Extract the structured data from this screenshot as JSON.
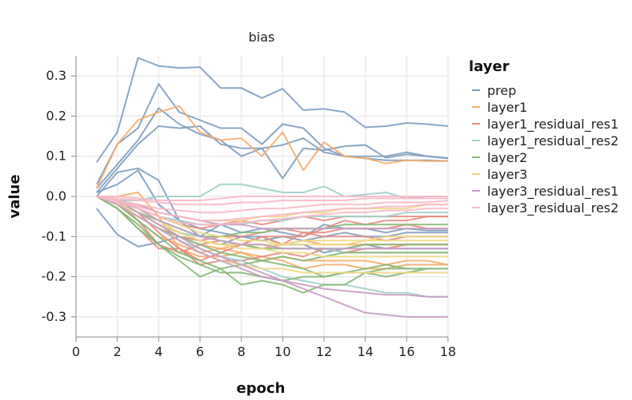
{
  "chart_data": {
    "type": "line",
    "title": "bias",
    "xlabel": "epoch",
    "ylabel": "value",
    "xlim": [
      0,
      18
    ],
    "ylim": [
      -0.35,
      0.35
    ],
    "xticks": [
      "0",
      "2",
      "4",
      "6",
      "8",
      "10",
      "12",
      "14",
      "16",
      "18"
    ],
    "yticks": [
      "0.3",
      "0.2",
      "0.1",
      "0.0",
      "-0.1",
      "-0.2",
      "-0.3"
    ],
    "grid": true,
    "legend_position": "right",
    "legend": {
      "title": "layer",
      "entries": [
        {
          "name": "prep",
          "color": "#7e9dbf"
        },
        {
          "name": "layer1",
          "color": "#f5ad6c"
        },
        {
          "name": "layer1_residual_res1",
          "color": "#e88b80"
        },
        {
          "name": "layer1_residual_res2",
          "color": "#9fcfc9"
        },
        {
          "name": "layer2",
          "color": "#86b875"
        },
        {
          "name": "layer3",
          "color": "#f0d884"
        },
        {
          "name": "layer3_residual_res1",
          "color": "#c69cc3"
        },
        {
          "name": "layer3_residual_res2",
          "color": "#f9b8c6"
        }
      ]
    },
    "x": [
      1,
      2,
      3,
      4,
      5,
      6,
      7,
      8,
      9,
      10,
      11,
      12,
      13,
      14,
      15,
      16,
      17,
      18
    ],
    "series": [
      {
        "name": "prep",
        "values": [
          0.085,
          0.16,
          0.345,
          0.325,
          0.32,
          0.322,
          0.27,
          0.27,
          0.245,
          0.268,
          0.215,
          0.218,
          0.21,
          0.172,
          0.175,
          0.183,
          0.18,
          0.175
        ]
      },
      {
        "name": "prep",
        "values": [
          0.03,
          0.13,
          0.17,
          0.28,
          0.21,
          0.19,
          0.17,
          0.17,
          0.13,
          0.18,
          0.17,
          0.12,
          0.1,
          0.1,
          0.1,
          0.11,
          0.1,
          0.095
        ]
      },
      {
        "name": "prep",
        "values": [
          0.02,
          0.08,
          0.14,
          0.22,
          0.18,
          0.155,
          0.14,
          0.1,
          0.12,
          0.045,
          0.12,
          0.115,
          0.125,
          0.128,
          0.096,
          0.105,
          0.1,
          0.095
        ]
      },
      {
        "name": "prep",
        "values": [
          0.01,
          0.07,
          0.13,
          0.175,
          0.17,
          0.175,
          0.13,
          0.12,
          0.12,
          0.128,
          0.145,
          0.11,
          0.1,
          0.095,
          0.09,
          0.09,
          0.09,
          0.088
        ]
      },
      {
        "name": "prep",
        "values": [
          0.0,
          0.06,
          0.07,
          0.04,
          -0.06,
          -0.1,
          -0.07,
          -0.09,
          -0.08,
          -0.09,
          -0.1,
          -0.07,
          -0.08,
          -0.08,
          -0.09,
          -0.08,
          -0.085,
          -0.085
        ]
      },
      {
        "name": "prep",
        "values": [
          -0.03,
          -0.095,
          -0.125,
          -0.115,
          -0.1,
          -0.11,
          -0.12,
          -0.1,
          -0.11,
          -0.1,
          -0.11,
          -0.1,
          -0.09,
          -0.1,
          -0.1,
          -0.09,
          -0.09,
          -0.09
        ]
      },
      {
        "name": "prep",
        "values": [
          0.01,
          0.03,
          0.065,
          -0.02,
          -0.06,
          -0.08,
          -0.09,
          -0.1,
          -0.1,
          -0.12,
          -0.12,
          -0.14,
          -0.13,
          -0.12,
          -0.13,
          -0.13,
          -0.13,
          -0.13
        ]
      },
      {
        "name": "layer1",
        "values": [
          0.02,
          0.13,
          0.19,
          0.21,
          0.225,
          0.16,
          0.14,
          0.145,
          0.1,
          0.16,
          0.065,
          0.135,
          0.1,
          0.095,
          0.082,
          0.09,
          0.088,
          0.088
        ]
      },
      {
        "name": "layer1",
        "values": [
          0.0,
          0.0,
          0.01,
          -0.05,
          -0.13,
          -0.15,
          -0.15,
          -0.14,
          -0.16,
          -0.15,
          -0.16,
          -0.16,
          -0.16,
          -0.16,
          -0.17,
          -0.16,
          -0.16,
          -0.17
        ]
      },
      {
        "name": "layer1",
        "values": [
          0.0,
          -0.01,
          -0.06,
          -0.1,
          -0.12,
          -0.14,
          -0.13,
          -0.12,
          -0.13,
          -0.12,
          -0.11,
          -0.12,
          -0.12,
          -0.12,
          -0.12,
          -0.12,
          -0.12,
          -0.12
        ]
      },
      {
        "name": "layer1",
        "values": [
          0.0,
          -0.02,
          -0.05,
          -0.08,
          -0.1,
          -0.12,
          -0.13,
          -0.14,
          -0.15,
          -0.16,
          -0.18,
          -0.17,
          -0.17,
          -0.18,
          -0.18,
          -0.17,
          -0.17,
          -0.17
        ]
      },
      {
        "name": "layer1_residual_res1",
        "values": [
          0.0,
          -0.02,
          -0.04,
          -0.07,
          -0.1,
          -0.11,
          -0.1,
          -0.1,
          -0.09,
          -0.08,
          -0.09,
          -0.09,
          -0.08,
          -0.08,
          -0.08,
          -0.07,
          -0.08,
          -0.08
        ]
      },
      {
        "name": "layer1_residual_res1",
        "values": [
          0.0,
          -0.01,
          -0.04,
          -0.09,
          -0.13,
          -0.16,
          -0.14,
          -0.12,
          -0.1,
          -0.12,
          -0.09,
          -0.1,
          -0.1,
          -0.1,
          -0.11,
          -0.1,
          -0.1,
          -0.1
        ]
      },
      {
        "name": "layer1_residual_res1",
        "values": [
          0.0,
          -0.02,
          -0.06,
          -0.12,
          -0.14,
          -0.12,
          -0.11,
          -0.12,
          -0.1,
          -0.1,
          -0.1,
          -0.08,
          -0.06,
          -0.07,
          -0.06,
          -0.06,
          -0.05,
          -0.05
        ]
      },
      {
        "name": "layer1_residual_res1",
        "values": [
          0.0,
          -0.01,
          -0.03,
          -0.05,
          -0.07,
          -0.08,
          -0.07,
          -0.06,
          -0.07,
          -0.06,
          -0.05,
          -0.06,
          -0.05,
          -0.05,
          -0.05,
          -0.05,
          -0.05,
          -0.05
        ]
      },
      {
        "name": "layer1_residual_res1",
        "values": [
          0.0,
          -0.03,
          -0.08,
          -0.13,
          -0.13,
          -0.17,
          -0.16,
          -0.16,
          -0.15,
          -0.14,
          -0.15,
          -0.13,
          -0.14,
          -0.13,
          -0.13,
          -0.12,
          -0.12,
          -0.12
        ]
      },
      {
        "name": "layer1_residual_res2",
        "values": [
          0.0,
          -0.01,
          -0.01,
          0.0,
          0.0,
          0.0,
          0.03,
          0.03,
          0.02,
          0.01,
          0.01,
          0.025,
          0.0,
          0.005,
          0.01,
          -0.005,
          0.0,
          0.0
        ]
      },
      {
        "name": "layer1_residual_res2",
        "values": [
          0.0,
          -0.02,
          -0.05,
          -0.08,
          -0.11,
          -0.13,
          -0.15,
          -0.16,
          -0.18,
          -0.2,
          -0.21,
          -0.22,
          -0.22,
          -0.23,
          -0.24,
          -0.24,
          -0.25,
          -0.25
        ]
      },
      {
        "name": "layer1_residual_res2",
        "values": [
          0.0,
          -0.01,
          -0.03,
          -0.05,
          -0.06,
          -0.07,
          -0.07,
          -0.07,
          -0.06,
          -0.06,
          -0.05,
          -0.05,
          -0.05,
          -0.05,
          -0.05,
          -0.04,
          -0.04,
          -0.04
        ]
      },
      {
        "name": "layer1_residual_res2",
        "values": [
          0.0,
          -0.02,
          -0.04,
          -0.07,
          -0.09,
          -0.1,
          -0.11,
          -0.12,
          -0.12,
          -0.13,
          -0.13,
          -0.13,
          -0.14,
          -0.14,
          -0.14,
          -0.14,
          -0.14,
          -0.14
        ]
      },
      {
        "name": "layer2",
        "values": [
          0.0,
          -0.03,
          -0.07,
          -0.12,
          -0.16,
          -0.2,
          -0.18,
          -0.22,
          -0.21,
          -0.22,
          -0.24,
          -0.22,
          -0.22,
          -0.19,
          -0.2,
          -0.19,
          -0.18,
          -0.18
        ]
      },
      {
        "name": "layer2",
        "values": [
          0.0,
          -0.02,
          -0.06,
          -0.1,
          -0.14,
          -0.16,
          -0.18,
          -0.17,
          -0.16,
          -0.15,
          -0.16,
          -0.15,
          -0.14,
          -0.14,
          -0.14,
          -0.14,
          -0.14,
          -0.14
        ]
      },
      {
        "name": "layer2",
        "values": [
          0.0,
          -0.02,
          -0.05,
          -0.08,
          -0.1,
          -0.12,
          -0.14,
          -0.15,
          -0.16,
          -0.17,
          -0.18,
          -0.2,
          -0.19,
          -0.18,
          -0.17,
          -0.18,
          -0.18,
          -0.18
        ]
      },
      {
        "name": "layer2",
        "values": [
          0.0,
          -0.01,
          -0.04,
          -0.07,
          -0.09,
          -0.11,
          -0.12,
          -0.12,
          -0.13,
          -0.13,
          -0.13,
          -0.13,
          -0.13,
          -0.12,
          -0.12,
          -0.12,
          -0.12,
          -0.12
        ]
      },
      {
        "name": "layer2",
        "values": [
          0.0,
          -0.02,
          -0.04,
          -0.06,
          -0.08,
          -0.1,
          -0.1,
          -0.09,
          -0.09,
          -0.08,
          -0.08,
          -0.08,
          -0.07,
          -0.07,
          -0.07,
          -0.07,
          -0.07,
          -0.07
        ]
      },
      {
        "name": "layer2",
        "values": [
          0.0,
          -0.03,
          -0.08,
          -0.12,
          -0.15,
          -0.17,
          -0.19,
          -0.19,
          -0.2,
          -0.21,
          -0.2,
          -0.2,
          -0.19,
          -0.19,
          -0.18,
          -0.18,
          -0.18,
          -0.18
        ]
      },
      {
        "name": "layer3",
        "values": [
          0.0,
          -0.01,
          -0.03,
          -0.06,
          -0.09,
          -0.11,
          -0.12,
          -0.13,
          -0.13,
          -0.14,
          -0.14,
          -0.15,
          -0.15,
          -0.15,
          -0.15,
          -0.15,
          -0.15,
          -0.15
        ]
      },
      {
        "name": "layer3",
        "values": [
          0.0,
          -0.02,
          -0.05,
          -0.08,
          -0.11,
          -0.14,
          -0.16,
          -0.17,
          -0.18,
          -0.18,
          -0.19,
          -0.19,
          -0.19,
          -0.19,
          -0.19,
          -0.19,
          -0.19,
          -0.19
        ]
      },
      {
        "name": "layer3",
        "values": [
          0.0,
          -0.01,
          -0.02,
          -0.04,
          -0.05,
          -0.06,
          -0.06,
          -0.06,
          -0.05,
          -0.05,
          -0.04,
          -0.04,
          -0.03,
          -0.03,
          -0.03,
          -0.03,
          -0.02,
          -0.02
        ]
      },
      {
        "name": "layer3",
        "values": [
          0.0,
          -0.02,
          -0.04,
          -0.07,
          -0.09,
          -0.11,
          -0.12,
          -0.12,
          -0.12,
          -0.12,
          -0.11,
          -0.11,
          -0.11,
          -0.11,
          -0.1,
          -0.1,
          -0.1,
          -0.1
        ]
      },
      {
        "name": "layer3",
        "values": [
          0.0,
          -0.01,
          -0.03,
          -0.05,
          -0.07,
          -0.09,
          -0.1,
          -0.11,
          -0.11,
          -0.12,
          -0.12,
          -0.12,
          -0.12,
          -0.11,
          -0.11,
          -0.11,
          -0.11,
          -0.11
        ]
      },
      {
        "name": "layer3_residual_res1",
        "values": [
          0.0,
          -0.01,
          -0.04,
          -0.07,
          -0.1,
          -0.13,
          -0.15,
          -0.17,
          -0.19,
          -0.21,
          -0.23,
          -0.25,
          -0.27,
          -0.29,
          -0.295,
          -0.3,
          -0.3,
          -0.3
        ]
      },
      {
        "name": "layer3_residual_res1",
        "values": [
          0.0,
          -0.02,
          -0.05,
          -0.08,
          -0.11,
          -0.14,
          -0.16,
          -0.18,
          -0.2,
          -0.21,
          -0.22,
          -0.23,
          -0.235,
          -0.24,
          -0.245,
          -0.245,
          -0.25,
          -0.25
        ]
      },
      {
        "name": "layer3_residual_res1",
        "values": [
          0.0,
          -0.01,
          -0.03,
          -0.06,
          -0.08,
          -0.1,
          -0.11,
          -0.12,
          -0.12,
          -0.13,
          -0.13,
          -0.13,
          -0.13,
          -0.13,
          -0.13,
          -0.13,
          -0.13,
          -0.13
        ]
      },
      {
        "name": "layer3_residual_res1",
        "values": [
          0.0,
          -0.01,
          -0.02,
          -0.04,
          -0.05,
          -0.06,
          -0.07,
          -0.07,
          -0.08,
          -0.08,
          -0.08,
          -0.08,
          -0.08,
          -0.08,
          -0.08,
          -0.08,
          -0.08,
          -0.08
        ]
      },
      {
        "name": "layer3_residual_res2",
        "values": [
          0.0,
          -0.005,
          -0.01,
          -0.015,
          -0.02,
          -0.02,
          -0.02,
          -0.015,
          -0.015,
          -0.01,
          -0.01,
          -0.01,
          -0.01,
          -0.005,
          -0.005,
          -0.005,
          -0.005,
          -0.005
        ]
      },
      {
        "name": "layer3_residual_res2",
        "values": [
          0.0,
          -0.01,
          -0.02,
          -0.03,
          -0.035,
          -0.04,
          -0.04,
          -0.035,
          -0.03,
          -0.03,
          -0.025,
          -0.02,
          -0.02,
          -0.02,
          -0.015,
          -0.015,
          -0.015,
          -0.01
        ]
      },
      {
        "name": "layer3_residual_res2",
        "values": [
          0.0,
          -0.01,
          -0.025,
          -0.04,
          -0.05,
          -0.06,
          -0.06,
          -0.055,
          -0.05,
          -0.045,
          -0.04,
          -0.035,
          -0.03,
          -0.03,
          -0.025,
          -0.025,
          -0.02,
          -0.02
        ]
      },
      {
        "name": "layer3_residual_res2",
        "values": [
          0.0,
          0.0,
          -0.005,
          -0.01,
          -0.01,
          -0.01,
          -0.005,
          0.0,
          0.0,
          0.0,
          0.0,
          0.0,
          0.0,
          0.0,
          0.0,
          0.0,
          0.0,
          0.0
        ]
      },
      {
        "name": "layer3_residual_res2",
        "values": [
          0.0,
          -0.015,
          -0.03,
          -0.05,
          -0.065,
          -0.07,
          -0.07,
          -0.065,
          -0.06,
          -0.055,
          -0.05,
          -0.045,
          -0.04,
          -0.04,
          -0.035,
          -0.035,
          -0.03,
          -0.03
        ]
      }
    ]
  }
}
